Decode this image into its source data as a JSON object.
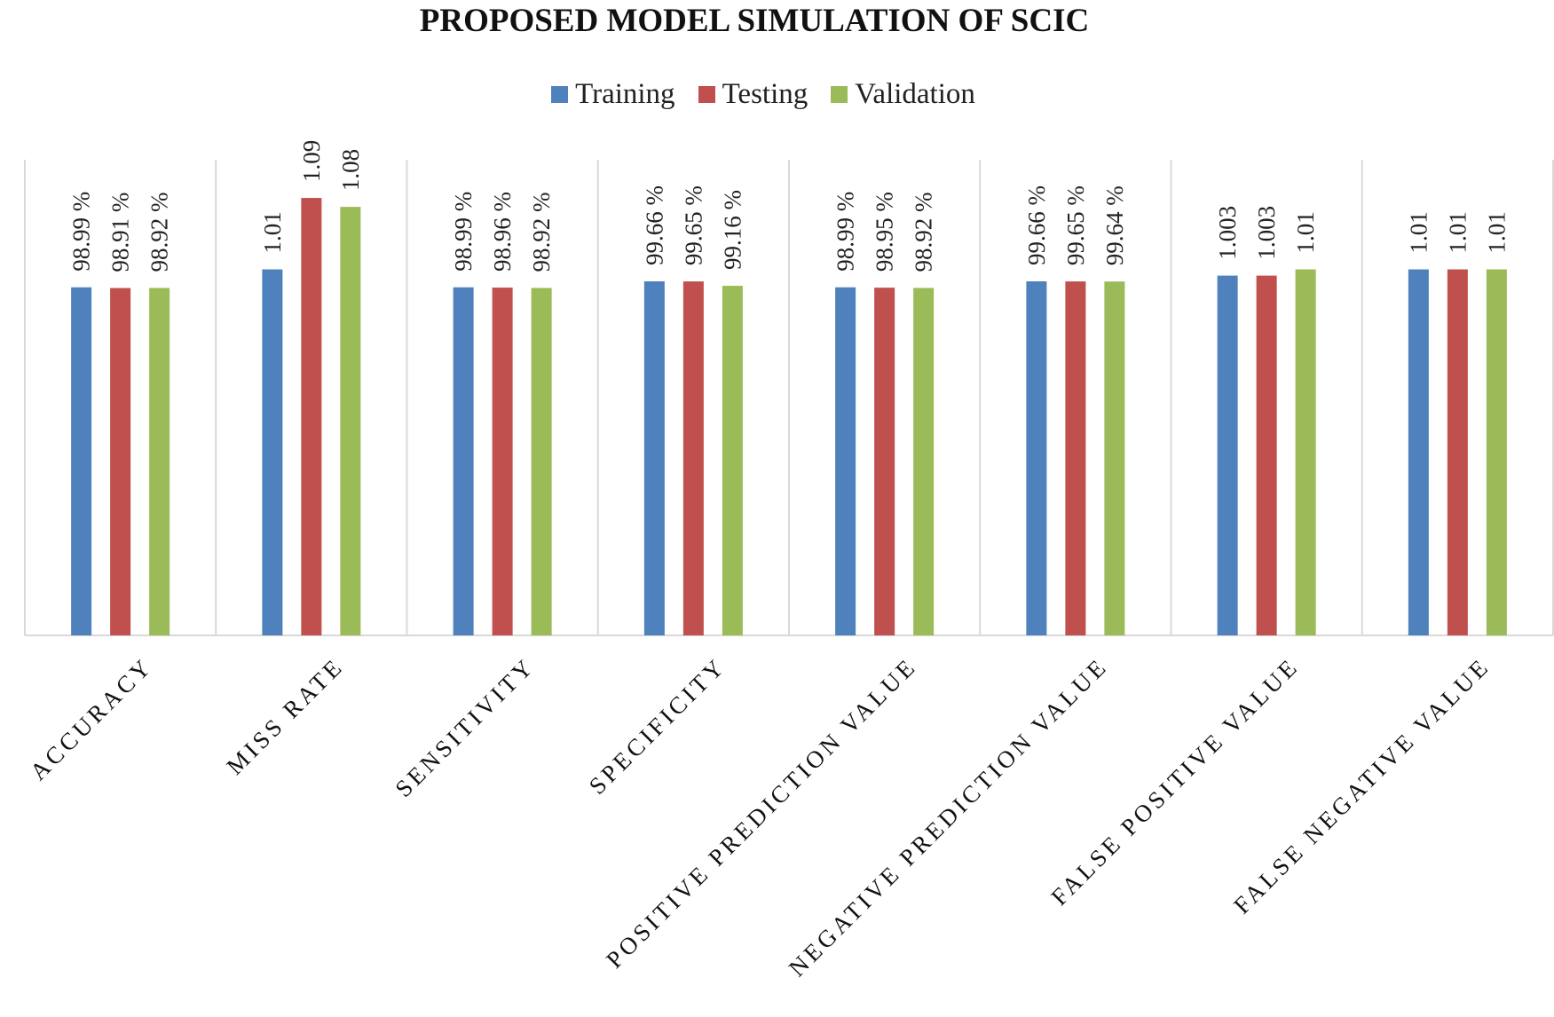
{
  "chart_data": {
    "type": "bar",
    "title": "PROPOSED MODEL SIMULATION OF SCIC",
    "categories": [
      "ACCURACY",
      "MISS RATE",
      "SENSITIVITY",
      "SPECIFICITY",
      "POSITIVE PREDICTION VALUE",
      "NEGATIVE PREDICTION VALUE",
      "FALSE POSITIVE VALUE",
      "FALSE NEGATIVE VALUE"
    ],
    "series": [
      {
        "name": "Training",
        "color": "#4f81bd",
        "values": [
          98.99,
          1.01,
          98.99,
          99.66,
          98.99,
          99.66,
          1.003,
          1.01
        ],
        "labels": [
          "98.99 %",
          "1.01",
          "98.99 %",
          "99.66 %",
          "98.99 %",
          "99.66 %",
          "1.003",
          "1.01"
        ]
      },
      {
        "name": "Testing",
        "color": "#c0504d",
        "values": [
          98.91,
          1.09,
          98.96,
          99.65,
          98.95,
          99.65,
          1.003,
          1.01
        ],
        "labels": [
          "98.91 %",
          "1.09",
          "98.96 %",
          "99.65 %",
          "98.95 %",
          "99.65 %",
          "1.003",
          "1.01"
        ]
      },
      {
        "name": "Validation",
        "color": "#9bbb59",
        "values": [
          98.92,
          1.08,
          98.92,
          99.16,
          98.92,
          99.64,
          1.01,
          1.01
        ],
        "labels": [
          "98.92 %",
          "1.08",
          "98.92 %",
          "99.16 %",
          "98.92 %",
          "99.64 %",
          "1.01",
          "1.01"
        ]
      }
    ],
    "legend": "top-center",
    "grid": "vertical category separators",
    "xlabel": "",
    "ylabel": "",
    "note": "Percentage metrics and rate metrics are drawn on visually comparable bar heights (ratio scale: percent values x 0.01)."
  }
}
